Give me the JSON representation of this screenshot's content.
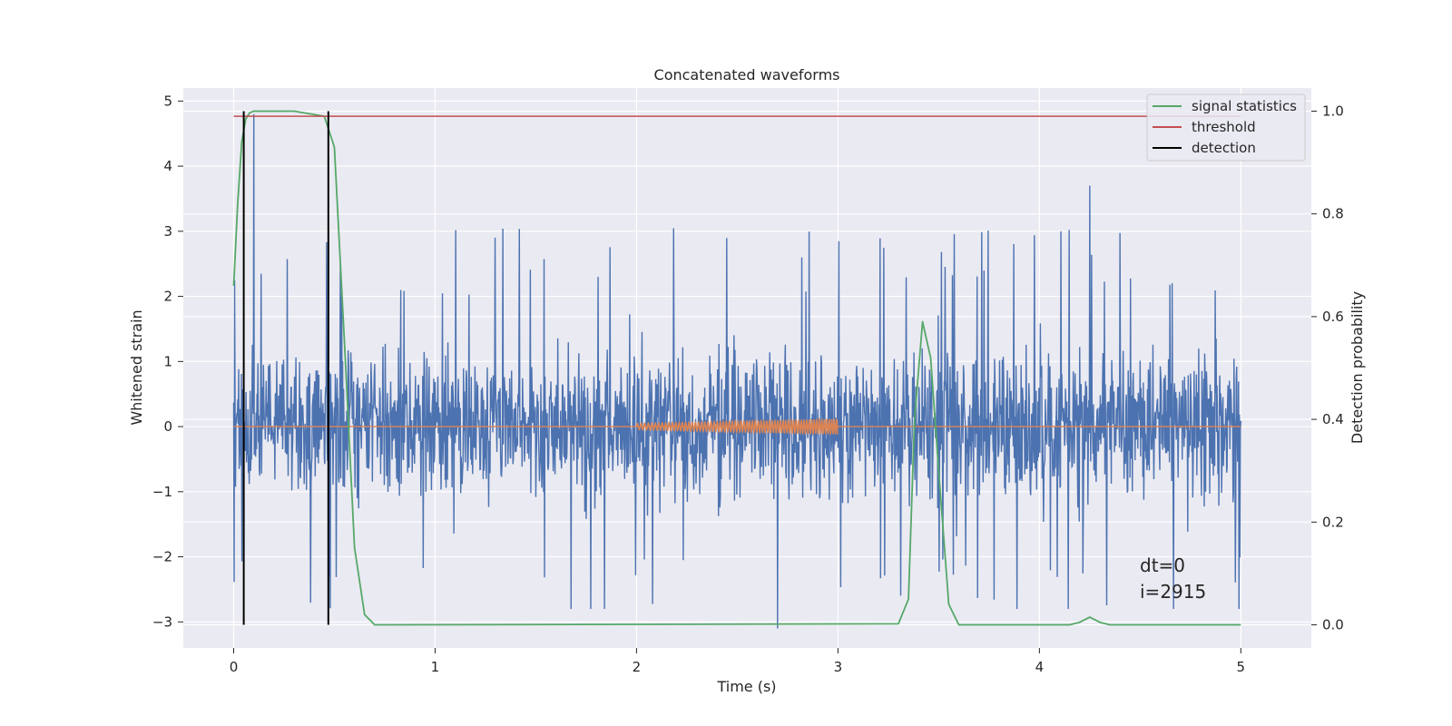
{
  "chart_data": {
    "type": "line",
    "title": "Concatenated waveforms",
    "xlabel": "Time (s)",
    "ylabel": "Whitened strain",
    "y2label": "Detection probability",
    "xlim": [
      -0.25,
      5.35
    ],
    "ylim": [
      -3.4,
      5.2
    ],
    "y2lim": [
      -0.045,
      1.045
    ],
    "x_ticks": [
      0,
      1,
      2,
      3,
      4,
      5
    ],
    "y_ticks": [
      -3,
      -2,
      -1,
      0,
      1,
      2,
      3,
      4,
      5
    ],
    "y2_ticks": [
      0.0,
      0.2,
      0.4,
      0.6,
      0.8,
      1.0
    ],
    "grid": true,
    "legend": {
      "placement": "top-right",
      "entries": [
        "signal statistics",
        "threshold",
        "detection"
      ]
    },
    "colors": {
      "strain": "#4c72b0",
      "injected_waveform": "#dd8452",
      "signal_statistics": "#55a868",
      "threshold": "#c44e52",
      "detection": "#000000",
      "background": "#eaeaf2",
      "grid": "#ffffff"
    },
    "series": [
      {
        "name": "whitened strain",
        "kind": "noise",
        "x_range": [
          0,
          5
        ],
        "samples": 2200,
        "typical_range": [
          -1.6,
          1.6
        ],
        "spike_max": 3.7,
        "spike_min": -3.1,
        "spike_max_x": 4.25,
        "spike_min_x": 2.7,
        "early_spike_x": 0.1,
        "early_spike_y": 4.8
      },
      {
        "name": "injected waveform",
        "kind": "chirp",
        "x_range": [
          2.0,
          3.0
        ],
        "amplitude_start": 0.05,
        "amplitude_end": 0.12,
        "cycles": 55
      },
      {
        "name": "signal statistics",
        "axis": "right",
        "x": [
          0,
          0.02,
          0.04,
          0.06,
          0.08,
          0.1,
          0.3,
          0.45,
          0.5,
          0.55,
          0.6,
          0.65,
          0.7,
          3.3,
          3.35,
          3.38,
          3.42,
          3.46,
          3.5,
          3.55,
          3.6,
          4.15,
          4.2,
          4.25,
          4.3,
          4.35,
          4.4,
          5.0
        ],
        "y": [
          0.66,
          0.82,
          0.94,
          0.985,
          0.997,
          1.0,
          1.0,
          0.99,
          0.93,
          0.55,
          0.15,
          0.02,
          0.0,
          0.002,
          0.05,
          0.4,
          0.59,
          0.52,
          0.3,
          0.04,
          0.0,
          0.0,
          0.005,
          0.015,
          0.005,
          0.0,
          0.0,
          0.0
        ]
      },
      {
        "name": "threshold",
        "axis": "right",
        "x": [
          0,
          5
        ],
        "y": [
          0.99,
          0.99
        ]
      },
      {
        "name": "detection",
        "axis": "right",
        "vlines": [
          0.05,
          0.47
        ],
        "y_range": [
          0.0,
          1.0
        ]
      }
    ],
    "annotations": [
      "dt=0",
      "i=2915"
    ]
  }
}
